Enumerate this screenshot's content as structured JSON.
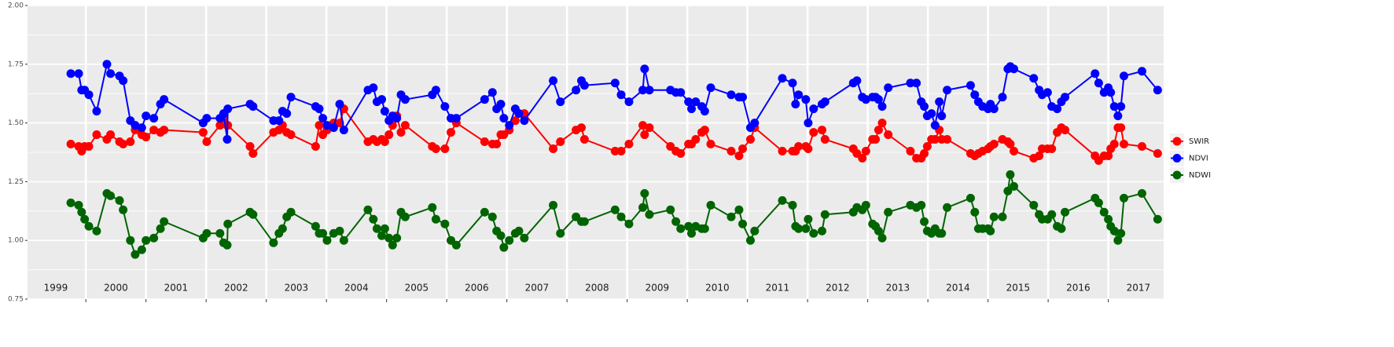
{
  "chart_data": {
    "type": "line",
    "x": [
      1999.75,
      1999.88,
      1999.93,
      1999.98,
      2000.05,
      2000.18,
      2000.35,
      2000.41,
      2000.56,
      2000.62,
      2000.74,
      2000.82,
      2000.93,
      2001.0,
      2001.13,
      2001.24,
      2001.3,
      2001.95,
      2002.01,
      2002.23,
      2002.29,
      2002.35,
      2002.36,
      2002.73,
      2002.78,
      2003.12,
      2003.21,
      2003.27,
      2003.34,
      2003.41,
      2003.82,
      2003.88,
      2003.94,
      2004.01,
      2004.12,
      2004.22,
      2004.29,
      2004.69,
      2004.78,
      2004.84,
      2004.92,
      2004.97,
      2005.04,
      2005.1,
      2005.17,
      2005.24,
      2005.31,
      2005.76,
      2005.82,
      2005.97,
      2006.07,
      2006.16,
      2006.63,
      2006.76,
      2006.83,
      2006.9,
      2006.95,
      2007.04,
      2007.14,
      2007.2,
      2007.29,
      2007.77,
      2007.89,
      2008.15,
      2008.24,
      2008.29,
      2008.8,
      2008.9,
      2009.03,
      2009.26,
      2009.29,
      2009.37,
      2009.72,
      2009.81,
      2009.89,
      2010.02,
      2010.07,
      2010.14,
      2010.24,
      2010.29,
      2010.39,
      2010.73,
      2010.86,
      2010.92,
      2011.05,
      2011.12,
      2011.58,
      2011.75,
      2011.8,
      2011.85,
      2011.97,
      2012.01,
      2012.1,
      2012.24,
      2012.29,
      2012.76,
      2012.82,
      2012.91,
      2012.97,
      2013.08,
      2013.13,
      2013.18,
      2013.24,
      2013.34,
      2013.71,
      2013.81,
      2013.89,
      2013.94,
      2013.99,
      2014.06,
      2014.12,
      2014.19,
      2014.23,
      2014.32,
      2014.71,
      2014.78,
      2014.84,
      2014.91,
      2015.0,
      2015.04,
      2015.1,
      2015.24,
      2015.33,
      2015.37,
      2015.43,
      2015.76,
      2015.85,
      2015.9,
      2015.99,
      2016.06,
      2016.15,
      2016.22,
      2016.28,
      2016.78,
      2016.84,
      2016.93,
      2017.0,
      2017.04,
      2017.1,
      2017.16,
      2017.21,
      2017.26,
      2017.56,
      2017.82
    ],
    "series": [
      {
        "name": "SWIR",
        "color": "#ff0000",
        "values": [
          1.41,
          1.4,
          1.38,
          1.4,
          1.4,
          1.45,
          1.43,
          1.45,
          1.42,
          1.41,
          1.42,
          1.47,
          1.45,
          1.44,
          1.47,
          1.46,
          1.47,
          1.46,
          1.42,
          1.49,
          1.52,
          1.49,
          1.49,
          1.4,
          1.37,
          1.46,
          1.47,
          1.49,
          1.46,
          1.45,
          1.4,
          1.49,
          1.45,
          1.47,
          1.5,
          1.5,
          1.56,
          1.42,
          1.43,
          1.42,
          1.43,
          1.42,
          1.45,
          1.49,
          1.53,
          1.46,
          1.49,
          1.4,
          1.39,
          1.39,
          1.46,
          1.5,
          1.42,
          1.41,
          1.41,
          1.45,
          1.45,
          1.47,
          1.51,
          1.54,
          1.54,
          1.39,
          1.42,
          1.47,
          1.48,
          1.43,
          1.38,
          1.38,
          1.41,
          1.49,
          1.45,
          1.48,
          1.4,
          1.38,
          1.37,
          1.41,
          1.41,
          1.43,
          1.46,
          1.47,
          1.41,
          1.38,
          1.36,
          1.39,
          1.43,
          1.48,
          1.38,
          1.38,
          1.38,
          1.4,
          1.4,
          1.39,
          1.46,
          1.47,
          1.43,
          1.39,
          1.37,
          1.35,
          1.38,
          1.43,
          1.43,
          1.47,
          1.5,
          1.45,
          1.38,
          1.35,
          1.35,
          1.37,
          1.4,
          1.43,
          1.43,
          1.47,
          1.43,
          1.43,
          1.37,
          1.36,
          1.37,
          1.38,
          1.39,
          1.4,
          1.41,
          1.43,
          1.42,
          1.41,
          1.38,
          1.35,
          1.36,
          1.39,
          1.39,
          1.39,
          1.46,
          1.48,
          1.47,
          1.36,
          1.34,
          1.36,
          1.36,
          1.39,
          1.41,
          1.48,
          1.48,
          1.41,
          1.4,
          1.37
        ]
      },
      {
        "name": "NDVI",
        "color": "#0000ff",
        "values": [
          1.71,
          1.71,
          1.64,
          1.64,
          1.62,
          1.55,
          1.75,
          1.71,
          1.7,
          1.68,
          1.51,
          1.49,
          1.48,
          1.53,
          1.52,
          1.58,
          1.6,
          1.5,
          1.52,
          1.52,
          1.54,
          1.43,
          1.56,
          1.58,
          1.57,
          1.51,
          1.51,
          1.55,
          1.54,
          1.61,
          1.57,
          1.56,
          1.52,
          1.49,
          1.48,
          1.58,
          1.47,
          1.64,
          1.65,
          1.59,
          1.6,
          1.55,
          1.51,
          1.53,
          1.52,
          1.62,
          1.6,
          1.62,
          1.64,
          1.57,
          1.52,
          1.52,
          1.6,
          1.63,
          1.56,
          1.58,
          1.52,
          1.49,
          1.56,
          1.54,
          1.51,
          1.68,
          1.59,
          1.64,
          1.68,
          1.66,
          1.67,
          1.62,
          1.59,
          1.64,
          1.73,
          1.64,
          1.64,
          1.63,
          1.63,
          1.59,
          1.56,
          1.59,
          1.57,
          1.55,
          1.65,
          1.62,
          1.61,
          1.61,
          1.48,
          1.5,
          1.69,
          1.67,
          1.58,
          1.62,
          1.6,
          1.5,
          1.56,
          1.58,
          1.59,
          1.67,
          1.68,
          1.61,
          1.6,
          1.61,
          1.61,
          1.6,
          1.57,
          1.65,
          1.67,
          1.67,
          1.59,
          1.57,
          1.53,
          1.54,
          1.49,
          1.59,
          1.53,
          1.64,
          1.66,
          1.62,
          1.59,
          1.57,
          1.56,
          1.58,
          1.56,
          1.61,
          1.73,
          1.74,
          1.73,
          1.69,
          1.64,
          1.62,
          1.63,
          1.57,
          1.56,
          1.59,
          1.61,
          1.71,
          1.67,
          1.63,
          1.65,
          1.63,
          1.57,
          1.53,
          1.57,
          1.7,
          1.72,
          1.64
        ]
      },
      {
        "name": "NDWI",
        "color": "#006400",
        "values": [
          1.16,
          1.15,
          1.12,
          1.09,
          1.06,
          1.04,
          1.2,
          1.19,
          1.17,
          1.13,
          1.0,
          0.94,
          0.96,
          1.0,
          1.01,
          1.05,
          1.08,
          1.01,
          1.03,
          1.03,
          0.99,
          0.98,
          1.07,
          1.12,
          1.11,
          0.99,
          1.03,
          1.05,
          1.1,
          1.12,
          1.06,
          1.03,
          1.03,
          1.0,
          1.03,
          1.04,
          1.0,
          1.13,
          1.09,
          1.05,
          1.02,
          1.05,
          1.01,
          0.98,
          1.01,
          1.12,
          1.1,
          1.14,
          1.09,
          1.07,
          1.0,
          0.98,
          1.12,
          1.1,
          1.04,
          1.02,
          0.97,
          1.0,
          1.03,
          1.04,
          1.01,
          1.15,
          1.03,
          1.1,
          1.08,
          1.08,
          1.13,
          1.1,
          1.07,
          1.14,
          1.2,
          1.11,
          1.13,
          1.08,
          1.05,
          1.06,
          1.03,
          1.06,
          1.05,
          1.05,
          1.15,
          1.1,
          1.13,
          1.07,
          1.0,
          1.04,
          1.17,
          1.15,
          1.06,
          1.05,
          1.05,
          1.09,
          1.03,
          1.04,
          1.11,
          1.12,
          1.14,
          1.13,
          1.15,
          1.07,
          1.06,
          1.04,
          1.01,
          1.12,
          1.15,
          1.14,
          1.15,
          1.08,
          1.04,
          1.03,
          1.05,
          1.03,
          1.03,
          1.14,
          1.18,
          1.12,
          1.05,
          1.05,
          1.05,
          1.04,
          1.1,
          1.1,
          1.21,
          1.28,
          1.23,
          1.15,
          1.11,
          1.09,
          1.09,
          1.11,
          1.06,
          1.05,
          1.12,
          1.18,
          1.16,
          1.12,
          1.09,
          1.06,
          1.04,
          1.0,
          1.03,
          1.18,
          1.2,
          1.09
        ]
      }
    ],
    "xlim": [
      1999.03,
      2017.92
    ],
    "xticks": [
      1999,
      2000,
      2001,
      2002,
      2003,
      2004,
      2005,
      2006,
      2007,
      2008,
      2009,
      2010,
      2011,
      2012,
      2013,
      2014,
      2015,
      2016,
      2017
    ],
    "ylim": [
      0.75,
      2.0
    ],
    "yticks": [
      {
        "value": 0.75,
        "label": "0.75"
      },
      {
        "value": 1.0,
        "label": "1.00"
      },
      {
        "value": 1.25,
        "label": "1.25"
      },
      {
        "value": 1.5,
        "label": "1.50"
      },
      {
        "value": 1.75,
        "label": "1.75"
      },
      {
        "value": 2.0,
        "label": "2.00"
      }
    ],
    "grid": true,
    "legend": "right"
  }
}
